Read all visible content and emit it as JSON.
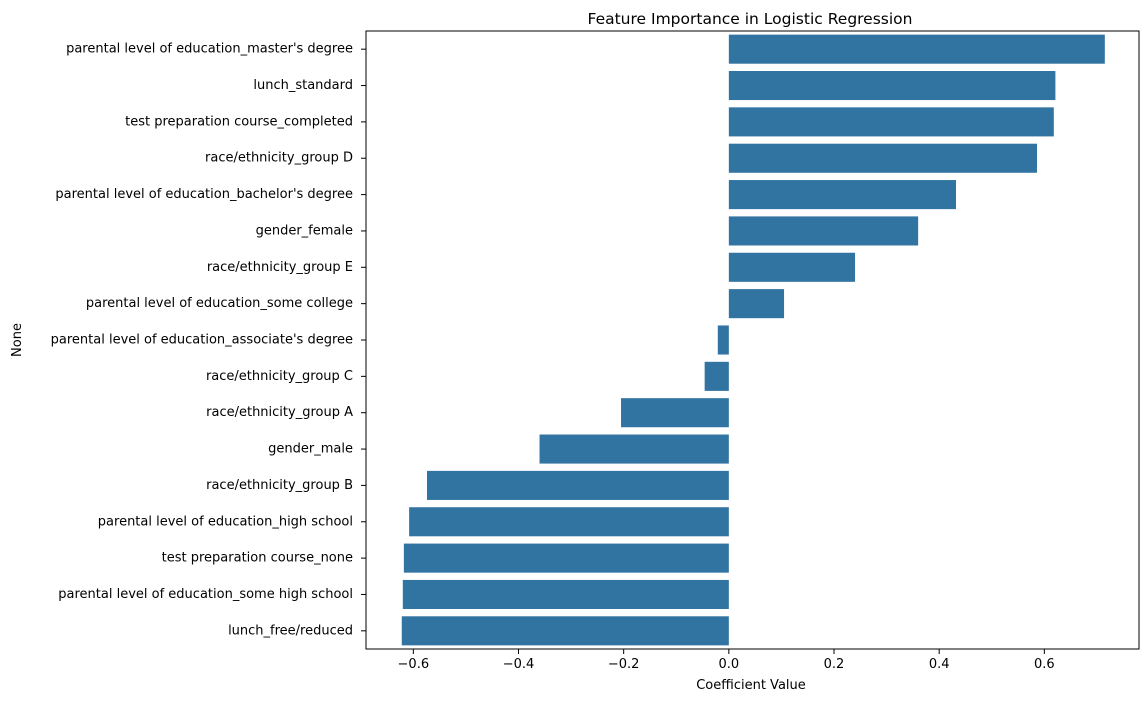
{
  "chart_data": {
    "type": "bar",
    "orientation": "horizontal",
    "title": "Feature Importance in Logistic Regression",
    "xlabel": "Coefficient Value",
    "ylabel": "None",
    "xlim": [
      -0.69,
      0.78
    ],
    "xticks": [
      -0.6,
      -0.4,
      -0.2,
      0.0,
      0.2,
      0.4,
      0.6
    ],
    "xtick_labels": [
      "−0.6",
      "−0.4",
      "−0.2",
      "0.0",
      "0.2",
      "0.4",
      "0.6"
    ],
    "grid": false,
    "bar_color": "#3274a1",
    "categories": [
      "parental level of education_master's degree",
      "lunch_standard",
      "test preparation course_completed",
      "race/ethnicity_group D",
      "parental level of education_bachelor's degree",
      "gender_female",
      "race/ethnicity_group E",
      "parental level of education_some college",
      "parental level of education_associate's degree",
      "race/ethnicity_group C",
      "race/ethnicity_group A",
      "gender_male",
      "race/ethnicity_group B",
      "parental level of education_high school",
      "test preparation course_none",
      "parental level of education_some high school",
      "lunch_free/reduced"
    ],
    "values": [
      0.715,
      0.621,
      0.618,
      0.586,
      0.432,
      0.36,
      0.24,
      0.105,
      -0.021,
      -0.046,
      -0.205,
      -0.36,
      -0.574,
      -0.608,
      -0.618,
      -0.62,
      -0.622
    ]
  }
}
